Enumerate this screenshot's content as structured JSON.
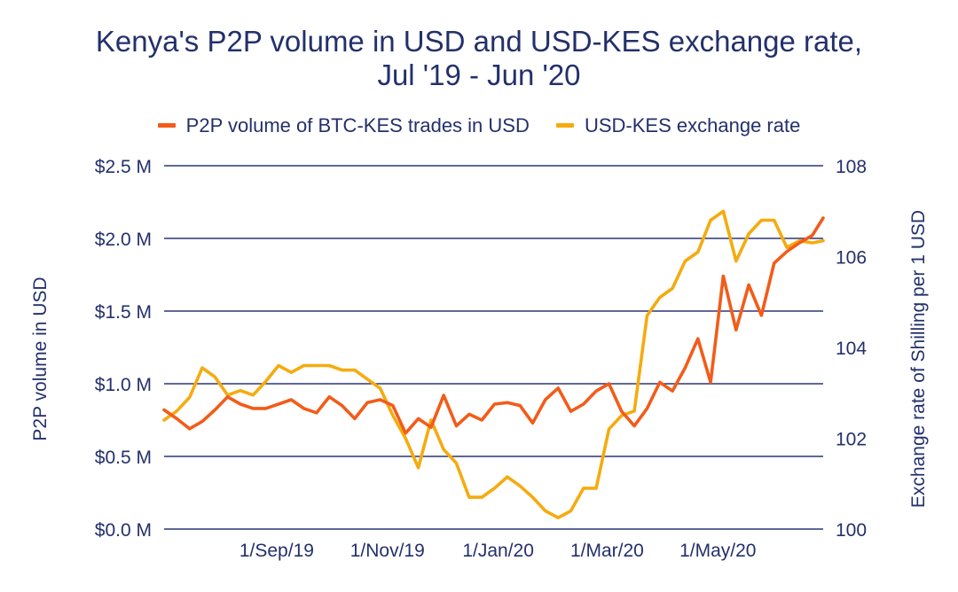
{
  "chart_data": {
    "type": "line",
    "title_line1": "Kenya's P2P volume in USD and USD-KES exchange rate,",
    "title_line2": "Jul '19 - Jun '20",
    "ylabel_left": "P2P volume in USD",
    "ylabel_right": "Exchange rate of Shilling per 1 USD",
    "ylim_left": [
      0,
      2.5
    ],
    "ylim_right": [
      100,
      108
    ],
    "left_ticks": [
      {
        "value": 0,
        "label": "$0.0 M"
      },
      {
        "value": 0.5,
        "label": "$0.5 M"
      },
      {
        "value": 1.0,
        "label": "$1.0 M"
      },
      {
        "value": 1.5,
        "label": "$1.5 M"
      },
      {
        "value": 2.0,
        "label": "$2.0 M"
      },
      {
        "value": 2.5,
        "label": "$2.5 M"
      }
    ],
    "right_ticks": [
      {
        "value": 100,
        "label": "100"
      },
      {
        "value": 102,
        "label": "102"
      },
      {
        "value": 104,
        "label": "104"
      },
      {
        "value": 106,
        "label": "106"
      },
      {
        "value": 108,
        "label": "108"
      }
    ],
    "x_start": "2019-07-01",
    "x_end": "2020-06-28",
    "x_ticks": [
      {
        "date": "2019-09-01",
        "label": "1/Sep/19"
      },
      {
        "date": "2019-11-01",
        "label": "1/Nov/19"
      },
      {
        "date": "2020-01-01",
        "label": "1/Jan/20"
      },
      {
        "date": "2020-03-01",
        "label": "1/Mar/20"
      },
      {
        "date": "2020-05-01",
        "label": "1/May/20"
      }
    ],
    "grid": true,
    "legend_position": "top",
    "series": [
      {
        "name": "P2P volume of BTC-KES trades in USD",
        "axis": "left",
        "color": "#f25c19",
        "values_unit": "USD millions",
        "dates": [
          "2019-07-01",
          "2019-07-08",
          "2019-07-15",
          "2019-07-22",
          "2019-07-29",
          "2019-08-05",
          "2019-08-12",
          "2019-08-19",
          "2019-08-26",
          "2019-09-02",
          "2019-09-09",
          "2019-09-16",
          "2019-09-23",
          "2019-09-30",
          "2019-10-07",
          "2019-10-14",
          "2019-10-21",
          "2019-10-28",
          "2019-11-04",
          "2019-11-11",
          "2019-11-18",
          "2019-11-25",
          "2019-12-02",
          "2019-12-09",
          "2019-12-16",
          "2019-12-23",
          "2019-12-30",
          "2020-01-06",
          "2020-01-13",
          "2020-01-20",
          "2020-01-27",
          "2020-02-03",
          "2020-02-10",
          "2020-02-17",
          "2020-02-24",
          "2020-03-02",
          "2020-03-09",
          "2020-03-16",
          "2020-03-23",
          "2020-03-30",
          "2020-04-06",
          "2020-04-13",
          "2020-04-20",
          "2020-04-27",
          "2020-05-04",
          "2020-05-11",
          "2020-05-18",
          "2020-05-25",
          "2020-06-01",
          "2020-06-08",
          "2020-06-15",
          "2020-06-22",
          "2020-06-28"
        ],
        "values": [
          0.82,
          0.76,
          0.69,
          0.74,
          0.82,
          0.91,
          0.86,
          0.83,
          0.83,
          0.86,
          0.89,
          0.83,
          0.8,
          0.91,
          0.85,
          0.76,
          0.87,
          0.89,
          0.85,
          0.66,
          0.76,
          0.7,
          0.92,
          0.71,
          0.79,
          0.75,
          0.86,
          0.87,
          0.85,
          0.73,
          0.89,
          0.97,
          0.81,
          0.86,
          0.95,
          1.0,
          0.81,
          0.71,
          0.83,
          1.01,
          0.95,
          1.11,
          1.31,
          1.01,
          1.74,
          1.37,
          1.68,
          1.47,
          1.83,
          1.91,
          1.97,
          2.02,
          2.14
        ]
      },
      {
        "name": "USD-KES exchange rate",
        "axis": "right",
        "color": "#f5ab0f",
        "values_unit": "KES per USD",
        "dates": [
          "2019-07-01",
          "2019-07-08",
          "2019-07-15",
          "2019-07-22",
          "2019-07-29",
          "2019-08-05",
          "2019-08-12",
          "2019-08-19",
          "2019-08-26",
          "2019-09-02",
          "2019-09-09",
          "2019-09-16",
          "2019-09-23",
          "2019-09-30",
          "2019-10-07",
          "2019-10-14",
          "2019-10-21",
          "2019-10-28",
          "2019-11-04",
          "2019-11-11",
          "2019-11-18",
          "2019-11-25",
          "2019-12-02",
          "2019-12-09",
          "2019-12-16",
          "2019-12-23",
          "2019-12-30",
          "2020-01-06",
          "2020-01-13",
          "2020-01-20",
          "2020-01-27",
          "2020-02-03",
          "2020-02-10",
          "2020-02-17",
          "2020-02-24",
          "2020-03-02",
          "2020-03-09",
          "2020-03-16",
          "2020-03-23",
          "2020-03-30",
          "2020-04-06",
          "2020-04-13",
          "2020-04-20",
          "2020-04-27",
          "2020-05-04",
          "2020-05-11",
          "2020-05-18",
          "2020-05-25",
          "2020-06-01",
          "2020-06-08",
          "2020-06-15",
          "2020-06-22",
          "2020-06-28"
        ],
        "values": [
          102.4,
          102.6,
          102.9,
          103.55,
          103.35,
          102.95,
          103.05,
          102.95,
          103.25,
          103.6,
          103.45,
          103.6,
          103.6,
          103.6,
          103.5,
          103.5,
          103.3,
          103.1,
          102.5,
          102.0,
          101.35,
          102.4,
          101.75,
          101.45,
          100.7,
          100.7,
          100.9,
          101.15,
          100.95,
          100.7,
          100.4,
          100.25,
          100.4,
          100.9,
          100.9,
          102.2,
          102.5,
          102.6,
          104.7,
          105.1,
          105.3,
          105.9,
          106.1,
          106.8,
          107.0,
          105.9,
          106.5,
          106.8,
          106.8,
          106.2,
          106.35,
          106.3,
          106.35
        ]
      }
    ]
  }
}
